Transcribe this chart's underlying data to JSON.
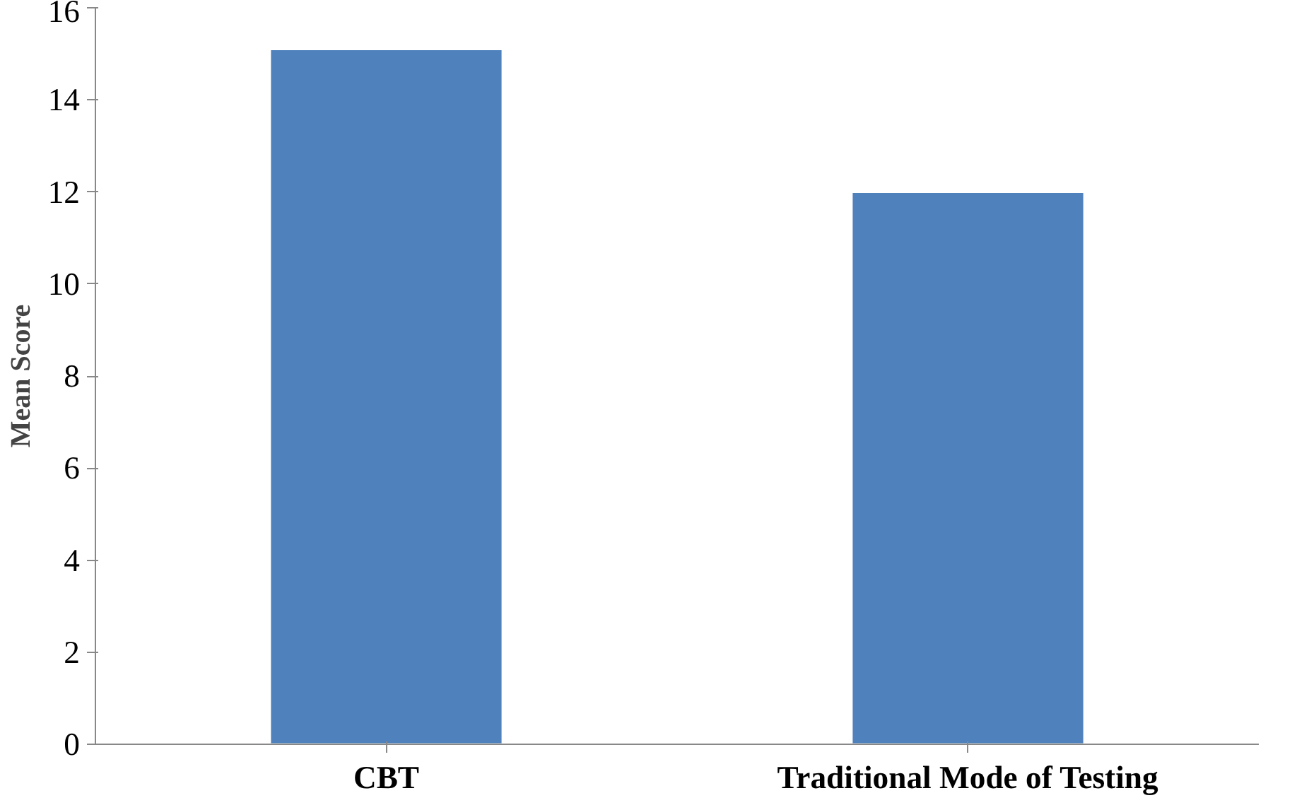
{
  "chart_data": {
    "type": "bar",
    "ylabel": "Mean Score",
    "categories": [
      "CBT",
      "Traditional Mode of Testing"
    ],
    "values": [
      15.1,
      12.0
    ],
    "color": "#4f81bd",
    "ylim": [
      0,
      16
    ],
    "yticks": [
      0,
      2,
      4,
      6,
      8,
      10,
      12,
      14,
      16
    ],
    "grid": false
  }
}
